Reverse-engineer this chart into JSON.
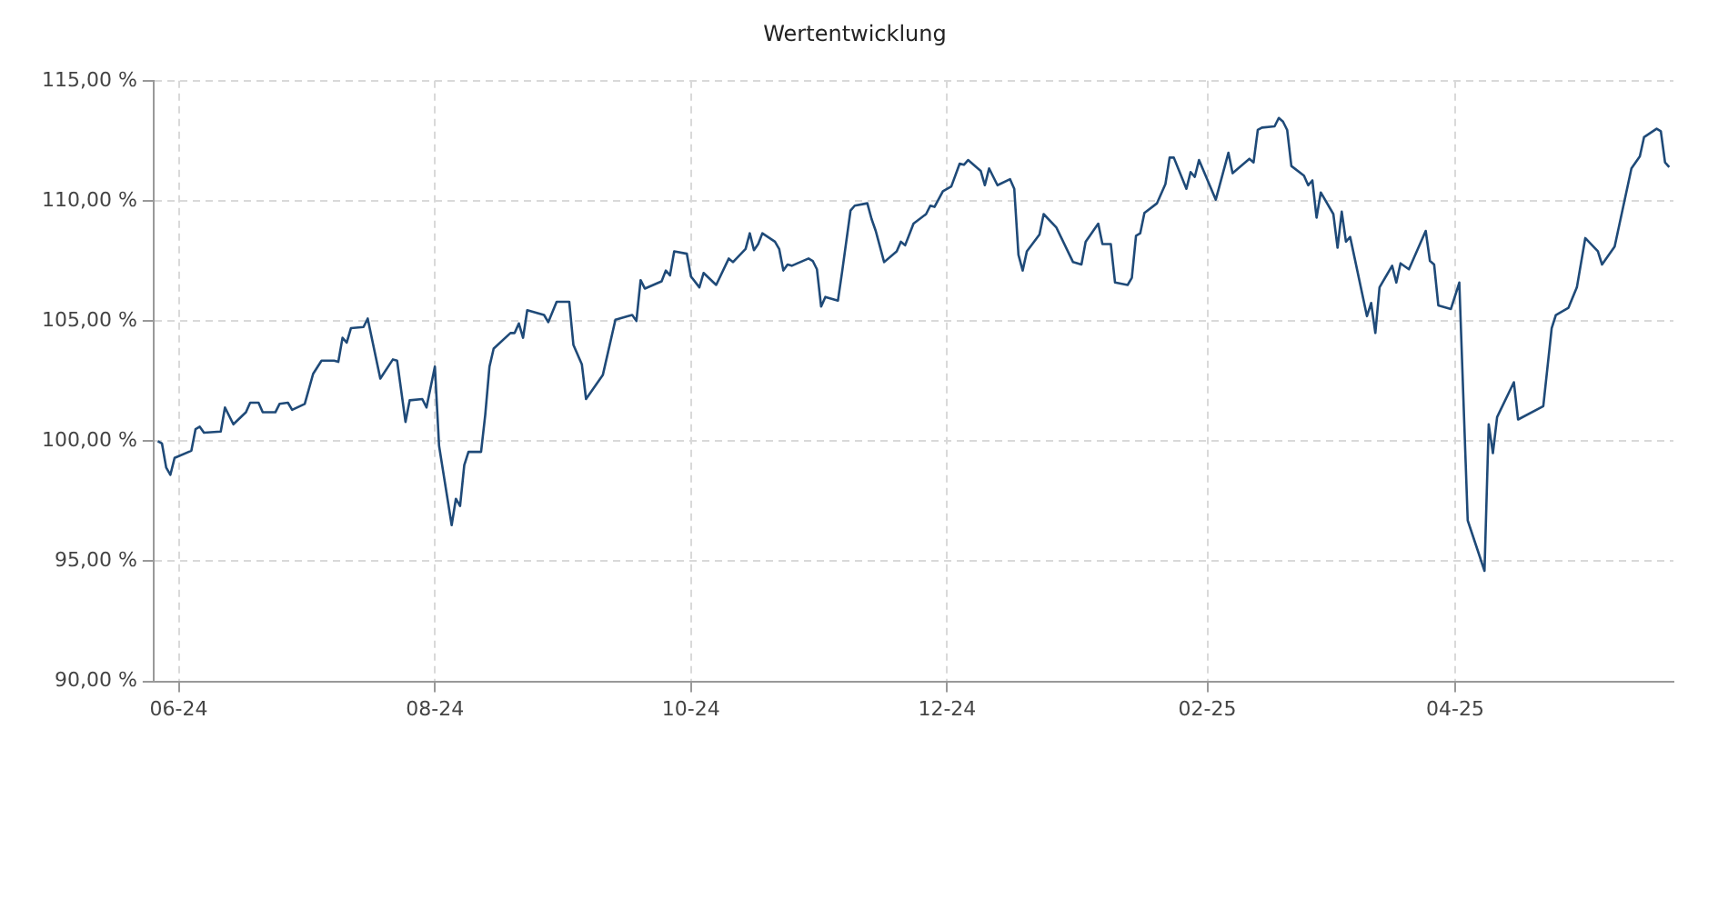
{
  "chart_data": {
    "type": "line",
    "title": "Wertentwicklung",
    "x": [
      "2024-05-27",
      "2024-05-28",
      "2024-05-29",
      "2024-05-30",
      "2024-05-31",
      "2024-06-04",
      "2024-06-05",
      "2024-06-06",
      "2024-06-07",
      "2024-06-11",
      "2024-06-12",
      "2024-06-14",
      "2024-06-17",
      "2024-06-18",
      "2024-06-20",
      "2024-06-21",
      "2024-06-24",
      "2024-06-25",
      "2024-06-27",
      "2024-06-28",
      "2024-07-01",
      "2024-07-03",
      "2024-07-05",
      "2024-07-08",
      "2024-07-09",
      "2024-07-10",
      "2024-07-11",
      "2024-07-12",
      "2024-07-15",
      "2024-07-16",
      "2024-07-19",
      "2024-07-22",
      "2024-07-23",
      "2024-07-25",
      "2024-07-26",
      "2024-07-29",
      "2024-07-30",
      "2024-08-01",
      "2024-08-02",
      "2024-08-05",
      "2024-08-06",
      "2024-08-07",
      "2024-08-08",
      "2024-08-09",
      "2024-08-12",
      "2024-08-13",
      "2024-08-14",
      "2024-08-15",
      "2024-08-19",
      "2024-08-20",
      "2024-08-21",
      "2024-08-22",
      "2024-08-23",
      "2024-08-27",
      "2024-08-28",
      "2024-08-30",
      "2024-09-02",
      "2024-09-03",
      "2024-09-05",
      "2024-09-06",
      "2024-09-10",
      "2024-09-13",
      "2024-09-16",
      "2024-09-17",
      "2024-09-18",
      "2024-09-19",
      "2024-09-20",
      "2024-09-24",
      "2024-09-25",
      "2024-09-26",
      "2024-09-27",
      "2024-09-30",
      "2024-10-01",
      "2024-10-03",
      "2024-10-04",
      "2024-10-07",
      "2024-10-10",
      "2024-10-11",
      "2024-10-14",
      "2024-10-15",
      "2024-10-16",
      "2024-10-17",
      "2024-10-18",
      "2024-10-21",
      "2024-10-22",
      "2024-10-23",
      "2024-10-24",
      "2024-10-25",
      "2024-10-29",
      "2024-10-30",
      "2024-10-31",
      "2024-11-01",
      "2024-11-02",
      "2024-11-05",
      "2024-11-06",
      "2024-11-08",
      "2024-11-09",
      "2024-11-12",
      "2024-11-13",
      "2024-11-14",
      "2024-11-16",
      "2024-11-19",
      "2024-11-20",
      "2024-11-21",
      "2024-11-23",
      "2024-11-26",
      "2024-11-27",
      "2024-11-28",
      "2024-11-30",
      "2024-12-02",
      "2024-12-04",
      "2024-12-05",
      "2024-12-06",
      "2024-12-09",
      "2024-12-10",
      "2024-12-11",
      "2024-12-13",
      "2024-12-16",
      "2024-12-17",
      "2024-12-18",
      "2024-12-19",
      "2024-12-20",
      "2024-12-23",
      "2024-12-24",
      "2024-12-27",
      "2024-12-31",
      "2025-01-02",
      "2025-01-03",
      "2025-01-06",
      "2025-01-07",
      "2025-01-09",
      "2025-01-10",
      "2025-01-13",
      "2025-01-14",
      "2025-01-15",
      "2025-01-16",
      "2025-01-17",
      "2025-01-20",
      "2025-01-22",
      "2025-01-23",
      "2025-01-24",
      "2025-01-27",
      "2025-01-28",
      "2025-01-29",
      "2025-01-30",
      "2025-02-03",
      "2025-02-06",
      "2025-02-07",
      "2025-02-11",
      "2025-02-12",
      "2025-02-13",
      "2025-02-14",
      "2025-02-17",
      "2025-02-18",
      "2025-02-19",
      "2025-02-20",
      "2025-02-21",
      "2025-02-24",
      "2025-02-25",
      "2025-02-26",
      "2025-02-27",
      "2025-02-28",
      "2025-03-03",
      "2025-03-04",
      "2025-03-05",
      "2025-03-06",
      "2025-03-07",
      "2025-03-11",
      "2025-03-12",
      "2025-03-13",
      "2025-03-14",
      "2025-03-17",
      "2025-03-18",
      "2025-03-19",
      "2025-03-21",
      "2025-03-25",
      "2025-03-26",
      "2025-03-27",
      "2025-03-28",
      "2025-03-31",
      "2025-04-02",
      "2025-04-04",
      "2025-04-08",
      "2025-04-09",
      "2025-04-10",
      "2025-04-11",
      "2025-04-15",
      "2025-04-16",
      "2025-04-22",
      "2025-04-24",
      "2025-04-25",
      "2025-04-28",
      "2025-04-30",
      "2025-05-02",
      "2025-05-05",
      "2025-05-06",
      "2025-05-09",
      "2025-05-13",
      "2025-05-15",
      "2025-05-16",
      "2025-05-19",
      "2025-05-20",
      "2025-05-21",
      "2025-05-22"
    ],
    "series": [
      {
        "color": "#1f4a78",
        "values": [
          100.0,
          99.9,
          98.9,
          98.6,
          99.3,
          99.6,
          100.5,
          100.6,
          100.35,
          100.4,
          101.4,
          100.7,
          101.2,
          101.6,
          101.6,
          101.2,
          101.2,
          101.55,
          101.6,
          101.3,
          101.55,
          102.8,
          103.35,
          103.35,
          103.3,
          104.3,
          104.1,
          104.7,
          104.75,
          105.1,
          102.6,
          103.4,
          103.35,
          100.8,
          101.7,
          101.75,
          101.4,
          103.1,
          99.8,
          96.5,
          97.6,
          97.3,
          99.0,
          99.55,
          99.55,
          101.1,
          103.1,
          103.85,
          104.5,
          104.5,
          104.9,
          104.3,
          105.45,
          105.25,
          104.95,
          105.8,
          105.8,
          104.0,
          103.2,
          101.75,
          102.75,
          105.05,
          105.2,
          105.25,
          105.0,
          106.7,
          106.35,
          106.65,
          107.1,
          106.9,
          107.9,
          107.8,
          106.85,
          106.4,
          107.0,
          106.5,
          107.6,
          107.45,
          108.0,
          108.65,
          107.95,
          108.2,
          108.65,
          108.3,
          108.0,
          107.1,
          107.35,
          107.3,
          107.6,
          107.5,
          107.15,
          105.6,
          106.0,
          105.85,
          107.05,
          109.6,
          109.8,
          109.9,
          109.25,
          108.75,
          107.45,
          107.9,
          108.3,
          108.15,
          109.05,
          109.45,
          109.8,
          109.75,
          110.4,
          110.6,
          111.55,
          111.5,
          111.7,
          111.25,
          110.65,
          111.35,
          110.65,
          110.9,
          110.5,
          107.75,
          107.1,
          107.9,
          108.6,
          109.45,
          108.9,
          107.45,
          107.35,
          108.3,
          109.05,
          108.2,
          108.2,
          106.6,
          106.5,
          106.8,
          108.55,
          108.65,
          109.5,
          109.9,
          110.7,
          111.8,
          111.8,
          110.5,
          111.2,
          111.0,
          111.7,
          110.05,
          112.0,
          111.15,
          111.75,
          111.6,
          112.95,
          113.05,
          113.1,
          113.45,
          113.3,
          112.95,
          111.45,
          111.05,
          110.65,
          110.85,
          109.3,
          110.35,
          109.45,
          108.05,
          109.55,
          108.3,
          108.5,
          105.2,
          105.75,
          104.5,
          106.4,
          107.3,
          106.6,
          107.4,
          107.15,
          108.75,
          107.5,
          107.35,
          105.65,
          105.5,
          106.6,
          96.7,
          94.6,
          100.7,
          99.5,
          101.0,
          102.45,
          100.9,
          101.45,
          104.7,
          105.25,
          105.55,
          106.4,
          108.45,
          107.9,
          107.35,
          108.1,
          111.35,
          111.85,
          112.65,
          113.0,
          112.9,
          111.6,
          111.4
        ]
      }
    ],
    "xlim": [
      "2024-05-26",
      "2025-05-23"
    ],
    "xticks": [
      {
        "value": "2024-06-01",
        "label": "06-24"
      },
      {
        "value": "2024-08-01",
        "label": "08-24"
      },
      {
        "value": "2024-10-01",
        "label": "10-24"
      },
      {
        "value": "2024-12-01",
        "label": "12-24"
      },
      {
        "value": "2025-02-01",
        "label": "02-25"
      },
      {
        "value": "2025-04-01",
        "label": "04-25"
      }
    ],
    "ylim": [
      90,
      115
    ],
    "yticks": [
      {
        "value": 90,
        "label": "90,00 %"
      },
      {
        "value": 95,
        "label": "95,00 %"
      },
      {
        "value": 100,
        "label": "100,00 %"
      },
      {
        "value": 105,
        "label": "105,00 %"
      },
      {
        "value": 110,
        "label": "110,00 %"
      },
      {
        "value": 115,
        "label": "115,00 %"
      }
    ],
    "grid": true,
    "marker": "none",
    "line_style": "solid"
  }
}
